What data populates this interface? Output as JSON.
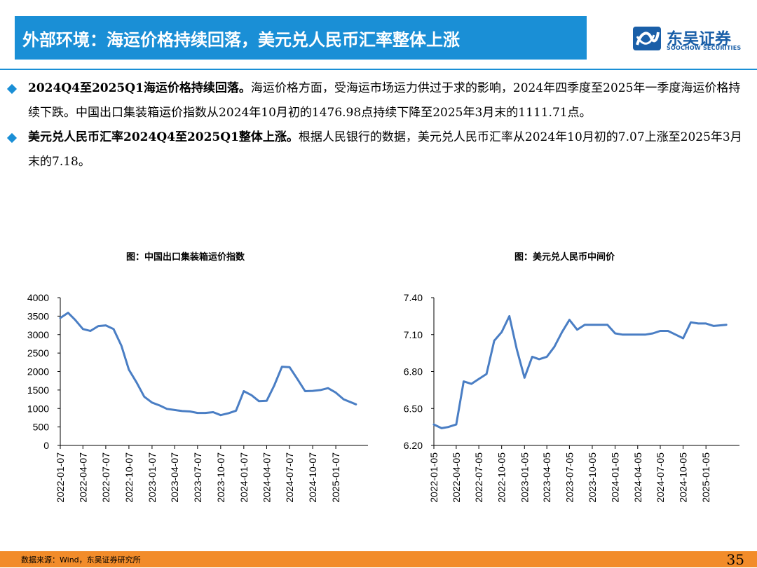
{
  "header": {
    "title": "外部环境：海运价格持续回落，美元兑人民币汇率整体上涨",
    "logo_cn": "东吴证券",
    "logo_en": "SOOCHOW SECURITIES"
  },
  "bullets": [
    {
      "bold": "2024Q4至2025Q1海运价格持续回落。",
      "text": "海运价格方面，受海运市场运力供过于求的影响，2024年四季度至2025年一季度海运价格持续下跌。中国出口集装箱运价指数从2024年10月初的1476.98点持续下降至2025年3月末的1111.71点。"
    },
    {
      "bold": "美元兑人民币汇率2024Q4至2025Q1整体上涨。",
      "text": "根据人民银行的数据，美元兑人民币汇率从2024年10月初的7.07上涨至2025年3月末的7.18。"
    }
  ],
  "chart_data": [
    {
      "type": "line",
      "title": "图：中国出口集装箱运价指数",
      "xlabel": "",
      "ylabel": "",
      "ylim": [
        0,
        4000
      ],
      "yticks": [
        "0",
        "500",
        "1000",
        "1500",
        "2000",
        "2500",
        "3000",
        "3500",
        "4000"
      ],
      "xticks": [
        "2022-01-07",
        "2022-04-07",
        "2022-07-07",
        "2022-10-07",
        "2023-01-07",
        "2023-04-07",
        "2023-07-07",
        "2023-10-07",
        "2024-01-07",
        "2024-04-07",
        "2024-07-07",
        "2024-10-07",
        "2025-01-07"
      ],
      "color": "#4a7ec4",
      "x": [
        "2022-01-07",
        "2022-02-07",
        "2022-03-07",
        "2022-04-07",
        "2022-05-07",
        "2022-06-07",
        "2022-07-07",
        "2022-08-07",
        "2022-09-07",
        "2022-10-07",
        "2022-11-07",
        "2022-12-07",
        "2023-01-07",
        "2023-02-07",
        "2023-03-07",
        "2023-04-07",
        "2023-05-07",
        "2023-06-07",
        "2023-07-07",
        "2023-08-07",
        "2023-09-07",
        "2023-10-07",
        "2023-11-07",
        "2023-12-07",
        "2024-01-07",
        "2024-02-07",
        "2024-03-07",
        "2024-04-07",
        "2024-05-07",
        "2024-06-07",
        "2024-07-07",
        "2024-08-07",
        "2024-09-07",
        "2024-10-07",
        "2024-11-07",
        "2024-12-07",
        "2025-01-07",
        "2025-02-07",
        "2025-03-28"
      ],
      "y": [
        3450,
        3590,
        3400,
        3150,
        3100,
        3230,
        3250,
        3150,
        2700,
        2050,
        1700,
        1320,
        1160,
        1080,
        990,
        960,
        930,
        920,
        880,
        880,
        900,
        820,
        870,
        940,
        1470,
        1360,
        1200,
        1210,
        1620,
        2130,
        2120,
        1800,
        1470,
        1477,
        1500,
        1550,
        1430,
        1250,
        1112
      ]
    },
    {
      "type": "line",
      "title": "图：美元兑人民币中间价",
      "xlabel": "",
      "ylabel": "",
      "ylim": [
        6.2,
        7.4
      ],
      "yticks": [
        "6.20",
        "6.50",
        "6.80",
        "7.10",
        "7.40"
      ],
      "xticks": [
        "2022-01-05",
        "2022-04-05",
        "2022-07-05",
        "2022-10-05",
        "2023-01-05",
        "2023-04-05",
        "2023-07-05",
        "2023-10-05",
        "2024-01-05",
        "2024-04-05",
        "2024-07-05",
        "2024-10-05",
        "2025-01-05"
      ],
      "color": "#4a7ec4",
      "x": [
        "2022-01-05",
        "2022-02-05",
        "2022-03-05",
        "2022-04-05",
        "2022-05-05",
        "2022-06-05",
        "2022-07-05",
        "2022-08-05",
        "2022-09-05",
        "2022-10-05",
        "2022-11-05",
        "2022-12-05",
        "2023-01-05",
        "2023-02-05",
        "2023-03-05",
        "2023-04-05",
        "2023-05-05",
        "2023-06-05",
        "2023-07-05",
        "2023-08-05",
        "2023-09-05",
        "2023-10-05",
        "2023-11-05",
        "2023-12-05",
        "2024-01-05",
        "2024-02-05",
        "2024-03-05",
        "2024-04-05",
        "2024-05-05",
        "2024-06-05",
        "2024-07-05",
        "2024-08-05",
        "2024-09-05",
        "2024-10-05",
        "2024-11-05",
        "2024-12-05",
        "2025-01-05",
        "2025-02-05",
        "2025-03-28"
      ],
      "y": [
        6.37,
        6.34,
        6.35,
        6.37,
        6.72,
        6.7,
        6.74,
        6.78,
        7.05,
        7.12,
        7.25,
        6.98,
        6.75,
        6.92,
        6.9,
        6.92,
        7.0,
        7.12,
        7.22,
        7.14,
        7.18,
        7.18,
        7.18,
        7.18,
        7.11,
        7.1,
        7.1,
        7.1,
        7.1,
        7.11,
        7.13,
        7.13,
        7.1,
        7.07,
        7.2,
        7.19,
        7.19,
        7.17,
        7.18
      ]
    }
  ],
  "footer": {
    "source": "数据来源：Wind，东吴证券研究所",
    "page": "35"
  }
}
